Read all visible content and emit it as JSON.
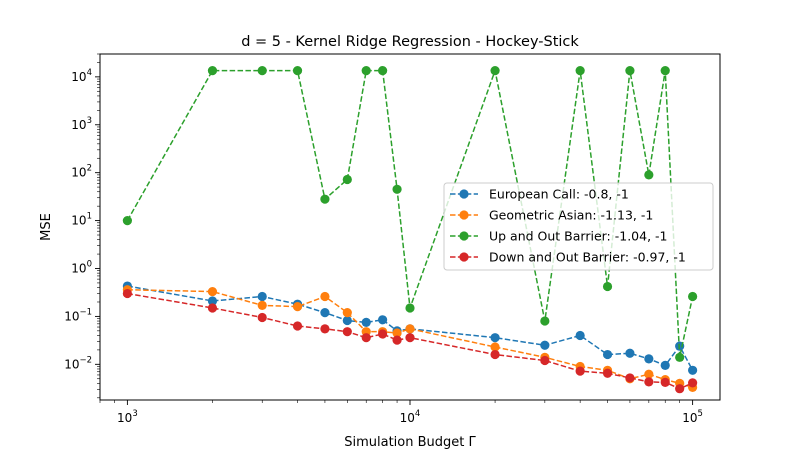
{
  "chart_data": {
    "type": "line",
    "title": "d = 5 - Kernel Ridge Regression - Hockey-Stick",
    "xlabel": "Simulation Budget Γ",
    "ylabel": "MSE",
    "xscale": "log",
    "yscale": "log",
    "xlim": [
      800,
      125000
    ],
    "ylim": [
      0.0018,
      30000
    ],
    "x_ticks": [
      {
        "value": 1000,
        "base": "10",
        "exp": "3"
      },
      {
        "value": 10000,
        "base": "10",
        "exp": "4"
      },
      {
        "value": 100000,
        "base": "10",
        "exp": "5"
      }
    ],
    "y_ticks": [
      {
        "value": 0.01,
        "base": "10",
        "exp": "−2"
      },
      {
        "value": 0.1,
        "base": "10",
        "exp": "−1"
      },
      {
        "value": 1,
        "base": "10",
        "exp": "0"
      },
      {
        "value": 10,
        "base": "10",
        "exp": "1"
      },
      {
        "value": 100,
        "base": "10",
        "exp": "2"
      },
      {
        "value": 1000,
        "base": "10",
        "exp": "3"
      },
      {
        "value": 10000,
        "base": "10",
        "exp": "4"
      }
    ],
    "grid": false,
    "legend_position": "center-right",
    "x": [
      1000,
      2000,
      3000,
      4000,
      5000,
      6000,
      7000,
      8000,
      9000,
      10000,
      20000,
      30000,
      40000,
      50000,
      60000,
      70000,
      80000,
      90000,
      100000
    ],
    "series": [
      {
        "name": "European Call: -0.8, -1",
        "color": "#1f77b4",
        "values": [
          0.43,
          0.21,
          0.26,
          0.18,
          0.12,
          0.082,
          0.075,
          0.085,
          0.05,
          0.055,
          0.036,
          0.025,
          0.04,
          0.016,
          0.017,
          0.013,
          0.0095,
          0.024,
          0.0075
        ]
      },
      {
        "name": "Geometric Asian: -1.13, -1",
        "color": "#ff7f0e",
        "values": [
          0.36,
          0.33,
          0.17,
          0.16,
          0.26,
          0.12,
          0.048,
          0.048,
          0.045,
          0.055,
          0.023,
          0.014,
          0.009,
          0.0075,
          0.005,
          0.0062,
          0.0048,
          0.004,
          0.0033
        ]
      },
      {
        "name": "Up and Out Barrier: -1.04, -1",
        "color": "#2ca02c",
        "values": [
          10,
          13500,
          13500,
          13500,
          28,
          72,
          13500,
          13500,
          45,
          0.15,
          13500,
          0.08,
          13500,
          0.42,
          13500,
          90,
          13500,
          0.014,
          0.26
        ]
      },
      {
        "name": "Down and Out Barrier: -0.97, -1",
        "color": "#d62728",
        "values": [
          0.3,
          0.15,
          0.095,
          0.063,
          0.055,
          0.048,
          0.036,
          0.043,
          0.032,
          0.036,
          0.016,
          0.012,
          0.0072,
          0.0065,
          0.0052,
          0.0043,
          0.0042,
          0.0031,
          0.0041
        ]
      }
    ]
  }
}
